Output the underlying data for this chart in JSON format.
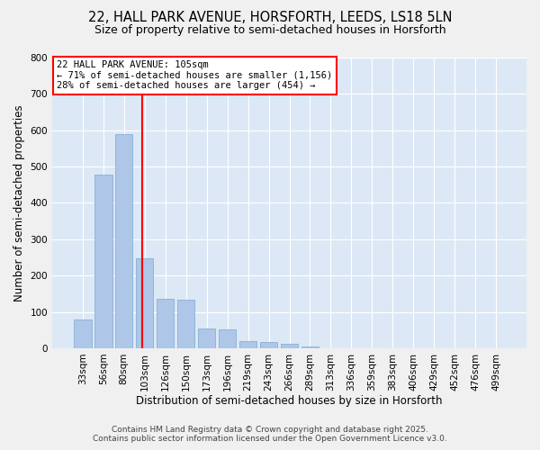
{
  "title_line1": "22, HALL PARK AVENUE, HORSFORTH, LEEDS, LS18 5LN",
  "title_line2": "Size of property relative to semi-detached houses in Horsforth",
  "xlabel": "Distribution of semi-detached houses by size in Horsforth",
  "ylabel": "Number of semi-detached properties",
  "categories": [
    "33sqm",
    "56sqm",
    "80sqm",
    "103sqm",
    "126sqm",
    "150sqm",
    "173sqm",
    "196sqm",
    "219sqm",
    "243sqm",
    "266sqm",
    "289sqm",
    "313sqm",
    "336sqm",
    "359sqm",
    "383sqm",
    "406sqm",
    "429sqm",
    "452sqm",
    "476sqm",
    "499sqm"
  ],
  "values": [
    78,
    478,
    590,
    248,
    135,
    133,
    55,
    52,
    20,
    16,
    12,
    6,
    0,
    0,
    0,
    0,
    0,
    0,
    0,
    0,
    0
  ],
  "bar_color": "#aec6e8",
  "bar_edge_color": "#7aaad0",
  "red_line_x": 2.9,
  "annotation_title": "22 HALL PARK AVENUE: 105sqm",
  "annotation_line2": "← 71% of semi-detached houses are smaller (1,156)",
  "annotation_line3": "28% of semi-detached houses are larger (454) →",
  "ylim": [
    0,
    800
  ],
  "yticks": [
    0,
    100,
    200,
    300,
    400,
    500,
    600,
    700,
    800
  ],
  "footer_line1": "Contains HM Land Registry data © Crown copyright and database right 2025.",
  "footer_line2": "Contains public sector information licensed under the Open Government Licence v3.0.",
  "bg_color": "#dce8f5",
  "grid_color": "#ffffff",
  "fig_bg_color": "#f0f0f0",
  "title_fontsize": 10.5,
  "subtitle_fontsize": 9,
  "axis_label_fontsize": 8.5,
  "tick_fontsize": 7.5,
  "annotation_fontsize": 7.5,
  "footer_fontsize": 6.5
}
